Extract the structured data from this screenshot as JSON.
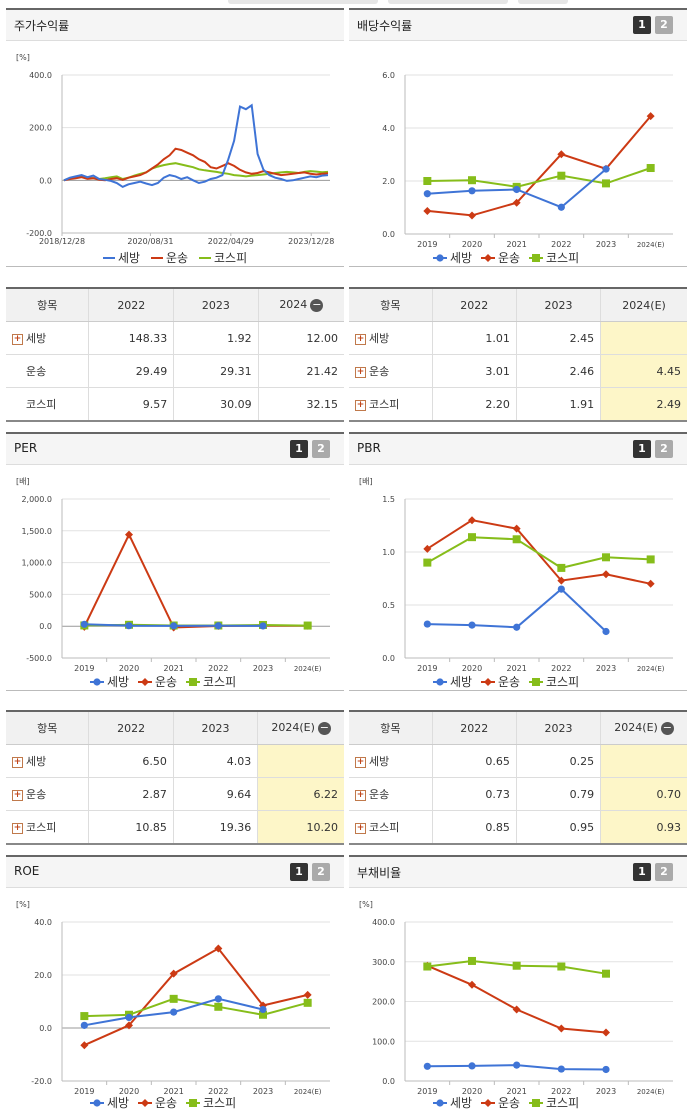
{
  "series_names": [
    "세방",
    "운송",
    "코스피"
  ],
  "colors": {
    "s1": "#3f74d6",
    "s2": "#cc3a14",
    "s3": "#86bd1a"
  },
  "panels": {
    "stock": {
      "title": "주가수익률"
    },
    "div": {
      "title": "배당수익률",
      "btn1": "1",
      "btn2": "2"
    },
    "per": {
      "title": "PER",
      "btn1": "1",
      "btn2": "2"
    },
    "pbr": {
      "title": "PBR",
      "btn1": "1",
      "btn2": "2"
    },
    "roe": {
      "title": "ROE",
      "btn1": "1",
      "btn2": "2"
    },
    "debt": {
      "title": "부채비율",
      "btn1": "1",
      "btn2": "2"
    }
  },
  "tables": {
    "stock": {
      "header": [
        "항목",
        "2022",
        "2023",
        "2024"
      ],
      "has_minus": true,
      "highlight_last": false,
      "rows": [
        {
          "label": "세방",
          "plus": true,
          "values": [
            "148.33",
            "1.92",
            "12.00"
          ]
        },
        {
          "label": "운송",
          "plus": false,
          "values": [
            "29.49",
            "29.31",
            "21.42"
          ]
        },
        {
          "label": "코스피",
          "plus": false,
          "values": [
            "9.57",
            "30.09",
            "32.15"
          ]
        }
      ]
    },
    "div": {
      "header": [
        "항목",
        "2022",
        "2023",
        "2024(E)"
      ],
      "has_minus": false,
      "highlight_last": true,
      "rows": [
        {
          "label": "세방",
          "plus": true,
          "values": [
            "1.01",
            "2.45",
            ""
          ]
        },
        {
          "label": "운송",
          "plus": true,
          "values": [
            "3.01",
            "2.46",
            "4.45"
          ]
        },
        {
          "label": "코스피",
          "plus": true,
          "values": [
            "2.20",
            "1.91",
            "2.49"
          ]
        }
      ]
    },
    "per": {
      "header": [
        "항목",
        "2022",
        "2023",
        "2024(E)"
      ],
      "has_minus": true,
      "highlight_last": true,
      "rows": [
        {
          "label": "세방",
          "plus": true,
          "values": [
            "6.50",
            "4.03",
            ""
          ]
        },
        {
          "label": "운송",
          "plus": true,
          "values": [
            "2.87",
            "9.64",
            "6.22"
          ]
        },
        {
          "label": "코스피",
          "plus": true,
          "values": [
            "10.85",
            "19.36",
            "10.20"
          ]
        }
      ]
    },
    "pbr": {
      "header": [
        "항목",
        "2022",
        "2023",
        "2024(E)"
      ],
      "has_minus": true,
      "highlight_last": true,
      "rows": [
        {
          "label": "세방",
          "plus": true,
          "values": [
            "0.65",
            "0.25",
            ""
          ]
        },
        {
          "label": "운송",
          "plus": true,
          "values": [
            "0.73",
            "0.79",
            "0.70"
          ]
        },
        {
          "label": "코스피",
          "plus": true,
          "values": [
            "0.85",
            "0.95",
            "0.93"
          ]
        }
      ]
    }
  },
  "chart_data": [
    {
      "id": "stock",
      "type": "line",
      "unit": "[%]",
      "ylim": [
        -200,
        400
      ],
      "yticks": [
        "400.0",
        "200.0",
        "0.0",
        "-200.0"
      ],
      "xticks": [
        "2018/12/28",
        "2020/08/31",
        "2022/04/29",
        "2023/12/28"
      ],
      "series": [
        {
          "name": "세방",
          "values": [
            0,
            10,
            15,
            20,
            12,
            18,
            5,
            2,
            -2,
            -10,
            -25,
            -15,
            -10,
            -5,
            -12,
            -18,
            -10,
            10,
            20,
            15,
            5,
            12,
            0,
            -10,
            -5,
            5,
            10,
            20,
            80,
            150,
            280,
            270,
            285,
            100,
            40,
            20,
            10,
            5,
            -2,
            0,
            5,
            10,
            15,
            12,
            18,
            20
          ]
        },
        {
          "name": "운송",
          "values": [
            0,
            5,
            8,
            12,
            6,
            8,
            2,
            0,
            5,
            8,
            2,
            10,
            15,
            20,
            30,
            45,
            60,
            80,
            95,
            120,
            115,
            105,
            95,
            80,
            70,
            50,
            45,
            55,
            65,
            55,
            40,
            30,
            25,
            28,
            35,
            30,
            25,
            20,
            22,
            25,
            28,
            30,
            25,
            22,
            25,
            27
          ]
        },
        {
          "name": "코스피",
          "values": [
            0,
            8,
            12,
            15,
            10,
            8,
            5,
            8,
            12,
            15,
            5,
            10,
            18,
            25,
            30,
            45,
            52,
            58,
            62,
            65,
            60,
            55,
            50,
            42,
            38,
            35,
            32,
            28,
            25,
            20,
            18,
            15,
            18,
            20,
            22,
            25,
            28,
            30,
            32,
            30,
            28,
            32,
            35,
            33,
            31,
            32
          ]
        }
      ]
    },
    {
      "id": "div",
      "type": "line",
      "unit": "",
      "ylim": [
        0,
        6
      ],
      "yticks": [
        "6.0",
        "4.0",
        "2.0",
        "0.0"
      ],
      "categories": [
        "2019",
        "2020",
        "2021",
        "2022",
        "2023",
        "2024(E)"
      ],
      "series": [
        {
          "name": "세방",
          "values": [
            1.52,
            1.63,
            1.68,
            1.01,
            2.45,
            null
          ]
        },
        {
          "name": "운송",
          "values": [
            0.87,
            0.7,
            1.18,
            3.01,
            2.46,
            4.45
          ]
        },
        {
          "name": "코스피",
          "values": [
            2.0,
            2.03,
            1.78,
            2.2,
            1.91,
            2.49
          ]
        }
      ]
    },
    {
      "id": "per",
      "type": "line",
      "unit": "[배]",
      "ylim": [
        -500,
        2000
      ],
      "yticks": [
        "2,000.0",
        "1,500.0",
        "1,000.0",
        "500.0",
        "0.0",
        "-500.0"
      ],
      "categories": [
        "2019",
        "2020",
        "2021",
        "2022",
        "2023",
        "2024(E)"
      ],
      "series": [
        {
          "name": "세방",
          "values": [
            30,
            8,
            5,
            6.5,
            4.03,
            null
          ]
        },
        {
          "name": "운송",
          "values": [
            -10,
            1440,
            -20,
            2.87,
            9.64,
            6.22
          ]
        },
        {
          "name": "코스피",
          "values": [
            12,
            22,
            11,
            10.85,
            19.36,
            10.2
          ]
        }
      ]
    },
    {
      "id": "pbr",
      "type": "line",
      "unit": "[배]",
      "ylim": [
        0,
        1.5
      ],
      "yticks": [
        "1.5",
        "1.0",
        "0.5",
        "0.0"
      ],
      "categories": [
        "2019",
        "2020",
        "2021",
        "2022",
        "2023",
        "2024(E)"
      ],
      "series": [
        {
          "name": "세방",
          "values": [
            0.32,
            0.31,
            0.29,
            0.65,
            0.25,
            null
          ]
        },
        {
          "name": "운송",
          "values": [
            1.03,
            1.3,
            1.22,
            0.73,
            0.79,
            0.7
          ]
        },
        {
          "name": "코스피",
          "values": [
            0.9,
            1.14,
            1.12,
            0.85,
            0.95,
            0.93
          ]
        }
      ]
    },
    {
      "id": "roe",
      "type": "line",
      "unit": "[%]",
      "ylim": [
        -20,
        40
      ],
      "yticks": [
        "40.0",
        "20.0",
        "0.0",
        "-20.0"
      ],
      "categories": [
        "2019",
        "2020",
        "2021",
        "2022",
        "2023",
        "2024(E)"
      ],
      "series": [
        {
          "name": "세방",
          "values": [
            1,
            4,
            6,
            11,
            7,
            null
          ]
        },
        {
          "name": "운송",
          "values": [
            -6.5,
            1,
            20.5,
            30,
            8.5,
            12.5
          ]
        },
        {
          "name": "코스피",
          "values": [
            4.5,
            5,
            11,
            8,
            5,
            9.5
          ]
        }
      ]
    },
    {
      "id": "debt",
      "type": "line",
      "unit": "[%]",
      "ylim": [
        0,
        400
      ],
      "yticks": [
        "400.0",
        "300.0",
        "200.0",
        "100.0",
        "0.0"
      ],
      "categories": [
        "2019",
        "2020",
        "2021",
        "2022",
        "2023",
        "2024(E)"
      ],
      "series": [
        {
          "name": "세방",
          "values": [
            37,
            38,
            40,
            30,
            29,
            null
          ]
        },
        {
          "name": "운송",
          "values": [
            290,
            242,
            180,
            132,
            122,
            null
          ]
        },
        {
          "name": "코스피",
          "values": [
            288,
            302,
            290,
            288,
            270,
            null
          ]
        }
      ]
    }
  ]
}
